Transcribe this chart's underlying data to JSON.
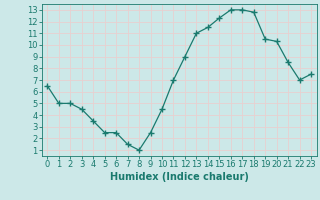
{
  "x": [
    0,
    1,
    2,
    3,
    4,
    5,
    6,
    7,
    8,
    9,
    10,
    11,
    12,
    13,
    14,
    15,
    16,
    17,
    18,
    19,
    20,
    21,
    22,
    23
  ],
  "y": [
    6.5,
    5.0,
    5.0,
    4.5,
    3.5,
    2.5,
    2.5,
    1.5,
    1.0,
    2.5,
    4.5,
    7.0,
    9.0,
    11.0,
    11.5,
    12.3,
    13.0,
    13.0,
    12.8,
    10.5,
    10.3,
    8.5,
    7.0,
    7.5
  ],
  "line_color": "#1a7a6e",
  "marker": "+",
  "marker_size": 4,
  "bg_color": "#cce8e8",
  "grid_color": "#e8d0d0",
  "xlabel": "Humidex (Indice chaleur)",
  "xlim": [
    -0.5,
    23.5
  ],
  "ylim": [
    0.5,
    13.5
  ],
  "yticks": [
    1,
    2,
    3,
    4,
    5,
    6,
    7,
    8,
    9,
    10,
    11,
    12,
    13
  ],
  "xticks": [
    0,
    1,
    2,
    3,
    4,
    5,
    6,
    7,
    8,
    9,
    10,
    11,
    12,
    13,
    14,
    15,
    16,
    17,
    18,
    19,
    20,
    21,
    22,
    23
  ],
  "tick_color": "#1a7a6e",
  "label_fontsize": 7,
  "tick_fontsize": 6,
  "linewidth": 0.9
}
